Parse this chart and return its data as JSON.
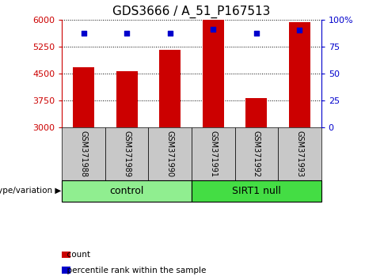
{
  "title": "GDS3666 / A_51_P167513",
  "samples": [
    "GSM371988",
    "GSM371989",
    "GSM371990",
    "GSM371991",
    "GSM371992",
    "GSM371993"
  ],
  "counts": [
    4680,
    4570,
    5150,
    5990,
    3820,
    5940
  ],
  "percentiles": [
    87,
    87,
    87,
    91,
    87,
    90
  ],
  "ylim_left": [
    3000,
    6000
  ],
  "ylim_right": [
    0,
    100
  ],
  "yticks_left": [
    3000,
    3750,
    4500,
    5250,
    6000
  ],
  "yticks_right": [
    0,
    25,
    50,
    75,
    100
  ],
  "bar_color": "#cc0000",
  "dot_color": "#0000cc",
  "groups": [
    {
      "label": "control",
      "indices": [
        0,
        1,
        2
      ],
      "color": "#90ee90"
    },
    {
      "label": "SIRT1 null",
      "indices": [
        3,
        4,
        5
      ],
      "color": "#44dd44"
    }
  ],
  "group_label_prefix": "genotype/variation",
  "legend_items": [
    {
      "label": "count",
      "color": "#cc0000"
    },
    {
      "label": "percentile rank within the sample",
      "color": "#0000cc"
    }
  ],
  "background_color": "#ffffff",
  "tick_area_color": "#c8c8c8",
  "title_fontsize": 11,
  "axis_fontsize": 8,
  "sample_fontsize": 7,
  "group_fontsize": 9,
  "legend_fontsize": 7.5
}
